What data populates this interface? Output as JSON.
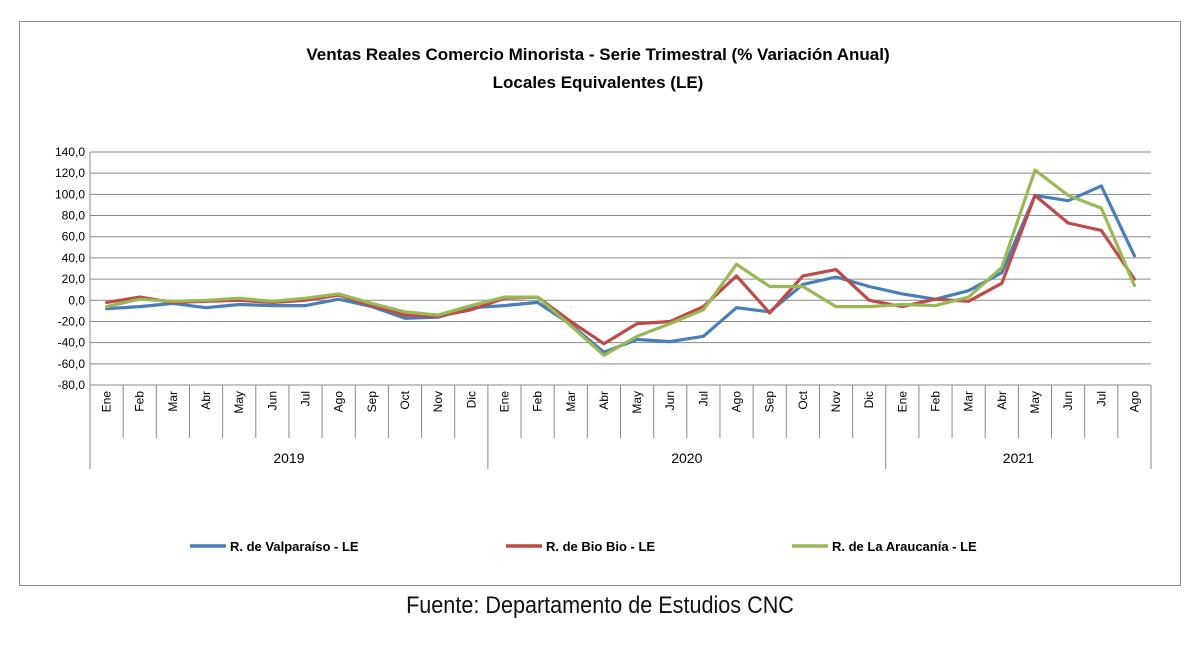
{
  "chart_data": {
    "type": "line",
    "title": "Ventas Reales Comercio Minorista - Serie Trimestral (% Variación Anual)",
    "subtitle": "Locales Equivalentes (LE)",
    "categories": [
      "Ene",
      "Feb",
      "Mar",
      "Abr",
      "May",
      "Jun",
      "Jul",
      "Ago",
      "Sep",
      "Oct",
      "Nov",
      "Dic",
      "Ene",
      "Feb",
      "Mar",
      "Abr",
      "May",
      "Jun",
      "Jul",
      "Ago",
      "Sep",
      "Oct",
      "Nov",
      "Dic",
      "Ene",
      "Feb",
      "Mar",
      "Abr",
      "May",
      "Jun",
      "Jul",
      "Ago"
    ],
    "groups": [
      {
        "label": "2019",
        "start": 0,
        "count": 12
      },
      {
        "label": "2020",
        "start": 12,
        "count": 12
      },
      {
        "label": "2021",
        "start": 24,
        "count": 8
      }
    ],
    "ylim": [
      -80,
      140
    ],
    "yticks": [
      "140,0",
      "120,0",
      "100,0",
      "80,0",
      "60,0",
      "40,0",
      "20,0",
      "0,0",
      "-20,0",
      "-40,0",
      "-60,0",
      "-80,0"
    ],
    "grid": true,
    "legend_position": "bottom",
    "series": [
      {
        "name": "R. de Valparaíso - LE",
        "color": "#4a7ebb",
        "values": [
          -8,
          -6,
          -3,
          -7,
          -4,
          -5,
          -5,
          1,
          -6,
          -17,
          -16,
          -7,
          -5,
          -2,
          -23,
          -49,
          -37,
          -39,
          -34,
          -7,
          -11,
          15,
          22,
          13,
          6,
          1,
          9,
          26,
          99,
          94,
          108,
          42
        ]
      },
      {
        "name": "R. de Bio Bio - LE",
        "color": "#be4b48",
        "values": [
          -2,
          3,
          -2,
          -1,
          0,
          -2,
          0,
          5,
          -5,
          -14,
          -15,
          -9,
          2,
          3,
          -20,
          -41,
          -22,
          -20,
          -6,
          23,
          -12,
          23,
          29,
          0,
          -6,
          1,
          -1,
          16,
          99,
          73,
          66,
          20
        ]
      },
      {
        "name": "R. de La Araucanía - LE",
        "color": "#98b954",
        "values": [
          -6,
          1,
          -1,
          0,
          2,
          -1,
          2,
          6,
          -3,
          -11,
          -14,
          -5,
          3,
          3,
          -24,
          -52,
          -34,
          -22,
          -9,
          34,
          13,
          13,
          -6,
          -6,
          -4,
          -5,
          3,
          31,
          123,
          99,
          87,
          14
        ]
      }
    ]
  },
  "footer": {
    "source": "Fuente: Departamento de Estudios CNC"
  }
}
